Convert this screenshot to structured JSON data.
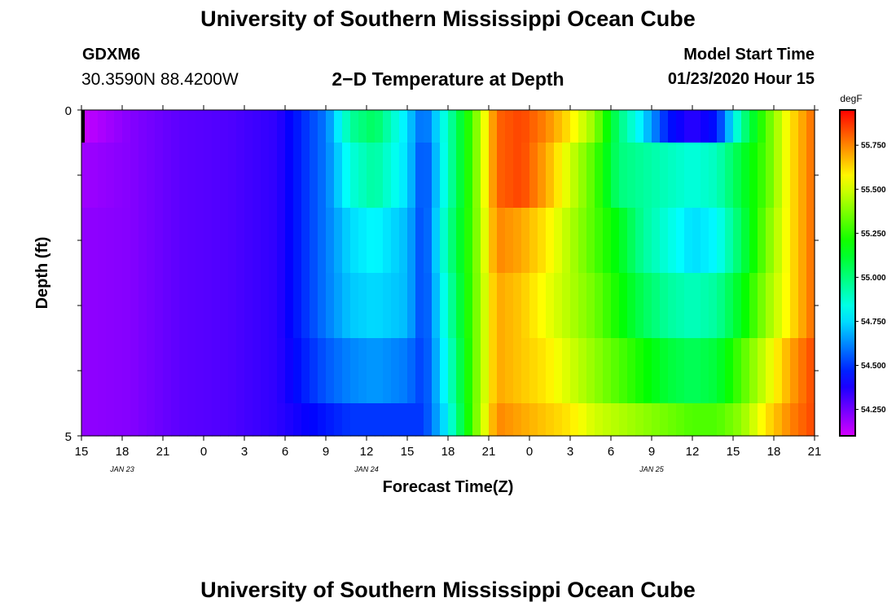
{
  "page": {
    "top_title": "University of Southern Mississippi Ocean Cube",
    "bottom_title": "University of Southern Mississippi Ocean Cube",
    "station_id": "GDXM6",
    "station_coords": "30.3590N 88.4200W",
    "plot_title": "2−D Temperature at Depth",
    "model_start_label": "Model Start Time",
    "model_start_value": "01/23/2020 Hour 15"
  },
  "chart_data": {
    "type": "heatmap",
    "title": "2−D Temperature at Depth",
    "xlabel": "Forecast Time(Z)",
    "ylabel": "Depth (ft)",
    "x_tick_labels": [
      "15",
      "18",
      "21",
      "0",
      "3",
      "6",
      "9",
      "12",
      "15",
      "18",
      "21",
      "0",
      "3",
      "6",
      "9",
      "12",
      "15",
      "18",
      "21"
    ],
    "date_labels": [
      {
        "label": "JAN  23",
        "tick": 1
      },
      {
        "label": "JAN  24",
        "tick": 7
      },
      {
        "label": "JAN  25",
        "tick": 14
      }
    ],
    "y_tick_labels": [
      "0",
      "5"
    ],
    "ylim": [
      0,
      5
    ],
    "colorbar": {
      "unit": "degF",
      "range": [
        54.1,
        55.95
      ],
      "tick_values": [
        54.25,
        54.5,
        54.75,
        55.0,
        55.25,
        55.5,
        55.75
      ],
      "tick_labels": [
        "54.250",
        "54.500",
        "54.750",
        "55.000",
        "55.250",
        "55.500",
        "55.750"
      ]
    },
    "hours": [
      0,
      6,
      12,
      18,
      24,
      30,
      33,
      36,
      40,
      42,
      45,
      48,
      51,
      54,
      57,
      60,
      63,
      66,
      69,
      72,
      75,
      78,
      81,
      84,
      87,
      90
    ],
    "layers": [
      {
        "depth_range": [
          0,
          0.5
        ],
        "temps": [
          54.12,
          54.22,
          54.28,
          54.3,
          54.35,
          54.6,
          54.95,
          55.05,
          54.75,
          54.55,
          54.9,
          55.3,
          55.8,
          55.85,
          55.75,
          55.6,
          55.4,
          55.0,
          54.75,
          54.45,
          54.35,
          54.45,
          54.95,
          55.3,
          55.6,
          55.8
        ]
      },
      {
        "depth_range": [
          0.5,
          1.5
        ],
        "temps": [
          54.18,
          54.22,
          54.28,
          54.3,
          54.35,
          54.6,
          54.85,
          54.95,
          54.75,
          54.5,
          54.9,
          55.3,
          55.8,
          55.85,
          55.7,
          55.5,
          55.3,
          55.0,
          54.95,
          54.9,
          54.85,
          54.9,
          55.1,
          55.3,
          55.6,
          55.8
        ]
      },
      {
        "depth_range": [
          1.5,
          2.5
        ],
        "temps": [
          54.2,
          54.22,
          54.28,
          54.3,
          54.35,
          54.6,
          54.75,
          54.8,
          54.7,
          54.5,
          54.95,
          55.3,
          55.75,
          55.7,
          55.6,
          55.45,
          55.3,
          55.15,
          54.95,
          54.85,
          54.75,
          54.8,
          55.05,
          55.35,
          55.6,
          55.8
        ]
      },
      {
        "depth_range": [
          2.5,
          3.5
        ],
        "temps": [
          54.2,
          54.22,
          54.28,
          54.3,
          54.35,
          54.6,
          54.72,
          54.75,
          54.7,
          54.5,
          54.9,
          55.3,
          55.7,
          55.65,
          55.55,
          55.45,
          55.35,
          55.2,
          55.05,
          54.95,
          54.9,
          54.95,
          55.15,
          55.4,
          55.6,
          55.8
        ]
      },
      {
        "depth_range": [
          3.5,
          4.5
        ],
        "temps": [
          54.2,
          54.22,
          54.28,
          54.3,
          54.35,
          54.55,
          54.62,
          54.65,
          54.6,
          54.5,
          54.85,
          55.3,
          55.7,
          55.65,
          55.6,
          55.5,
          55.4,
          55.3,
          55.2,
          55.1,
          55.05,
          55.1,
          55.3,
          55.5,
          55.7,
          55.85
        ]
      },
      {
        "depth_range": [
          4.5,
          5.0
        ],
        "temps": [
          54.2,
          54.22,
          54.28,
          54.3,
          54.35,
          54.45,
          54.5,
          54.5,
          54.5,
          54.5,
          54.8,
          55.3,
          55.75,
          55.7,
          55.65,
          55.6,
          55.5,
          55.45,
          55.4,
          55.35,
          55.3,
          55.3,
          55.4,
          55.6,
          55.75,
          55.85
        ]
      }
    ]
  }
}
